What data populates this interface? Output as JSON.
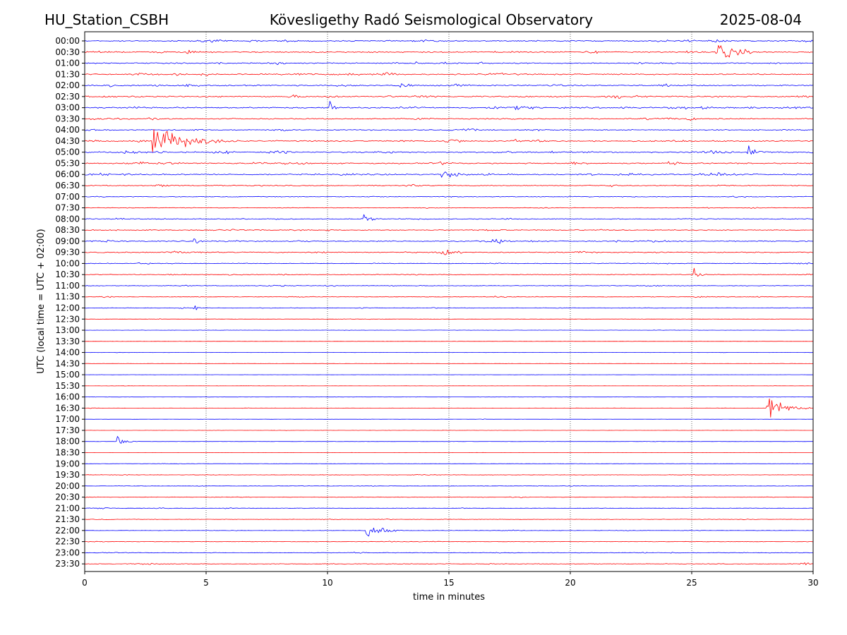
{
  "header": {
    "station": "HU_Station_CSBH",
    "observatory": "Kövesligethy Radó Seismological Observatory",
    "date": "2025-08-04"
  },
  "chart_data": {
    "type": "line",
    "xlabel": "time in minutes",
    "ylabel": "UTC (local time = UTC + 02:00)",
    "xlim": [
      0,
      30
    ],
    "x_ticks": [
      "0",
      "5",
      "10",
      "15",
      "20",
      "25",
      "30"
    ],
    "x_grid": "dotted vertical at every 5 minutes",
    "row_labels": [
      "00:00",
      "00:30",
      "01:00",
      "01:30",
      "02:00",
      "02:30",
      "03:00",
      "03:30",
      "04:00",
      "04:30",
      "05:00",
      "05:30",
      "06:00",
      "06:30",
      "07:00",
      "07:30",
      "08:00",
      "08:30",
      "09:00",
      "09:30",
      "10:00",
      "10:30",
      "11:00",
      "11:30",
      "12:00",
      "12:30",
      "13:00",
      "13:30",
      "14:00",
      "14:30",
      "15:00",
      "15:30",
      "16:00",
      "16:30",
      "17:00",
      "17:30",
      "18:00",
      "18:30",
      "19:00",
      "19:30",
      "20:00",
      "20:30",
      "21:00",
      "21:30",
      "22:00",
      "22:30",
      "23:00",
      "23:30"
    ],
    "trace_colors": [
      "#0000ff",
      "#ff0000"
    ],
    "noise_level": [
      0.55,
      0.6,
      0.55,
      0.6,
      0.6,
      0.65,
      0.65,
      0.55,
      0.45,
      0.6,
      0.65,
      0.6,
      0.6,
      0.45,
      0.35,
      0.3,
      0.4,
      0.45,
      0.5,
      0.5,
      0.35,
      0.35,
      0.3,
      0.3,
      0.25,
      0.15,
      0.12,
      0.12,
      0.12,
      0.12,
      0.1,
      0.1,
      0.12,
      0.12,
      0.1,
      0.1,
      0.12,
      0.1,
      0.15,
      0.2,
      0.2,
      0.25,
      0.25,
      0.2,
      0.2,
      0.25,
      0.3,
      0.3
    ],
    "events": [
      {
        "row": "00:30",
        "start_min": 26.1,
        "duration_min": 1.8,
        "amplitude": 1.1
      },
      {
        "row": "03:00",
        "start_min": 10.1,
        "duration_min": 0.4,
        "amplitude": 2.0
      },
      {
        "row": "04:30",
        "start_min": 2.8,
        "duration_min": 3.5,
        "amplitude": 3.0
      },
      {
        "row": "05:00",
        "start_min": 27.3,
        "duration_min": 0.8,
        "amplitude": 1.4
      },
      {
        "row": "06:00",
        "start_min": 14.7,
        "duration_min": 1.2,
        "amplitude": 1.0
      },
      {
        "row": "08:00",
        "start_min": 11.5,
        "duration_min": 0.7,
        "amplitude": 1.0
      },
      {
        "row": "09:00",
        "start_min": 4.5,
        "duration_min": 0.5,
        "amplitude": 1.0
      },
      {
        "row": "09:30",
        "start_min": 14.7,
        "duration_min": 0.8,
        "amplitude": 1.1
      },
      {
        "row": "10:30",
        "start_min": 25.1,
        "duration_min": 0.5,
        "amplitude": 1.0
      },
      {
        "row": "12:00",
        "start_min": 4.5,
        "duration_min": 0.3,
        "amplitude": 1.0
      },
      {
        "row": "16:30",
        "start_min": 28.1,
        "duration_min": 1.9,
        "amplitude": 2.5
      },
      {
        "row": "18:00",
        "start_min": 1.35,
        "duration_min": 0.9,
        "amplitude": 1.1
      },
      {
        "row": "22:00",
        "start_min": 11.6,
        "duration_min": 1.5,
        "amplitude": 1.9
      }
    ]
  }
}
